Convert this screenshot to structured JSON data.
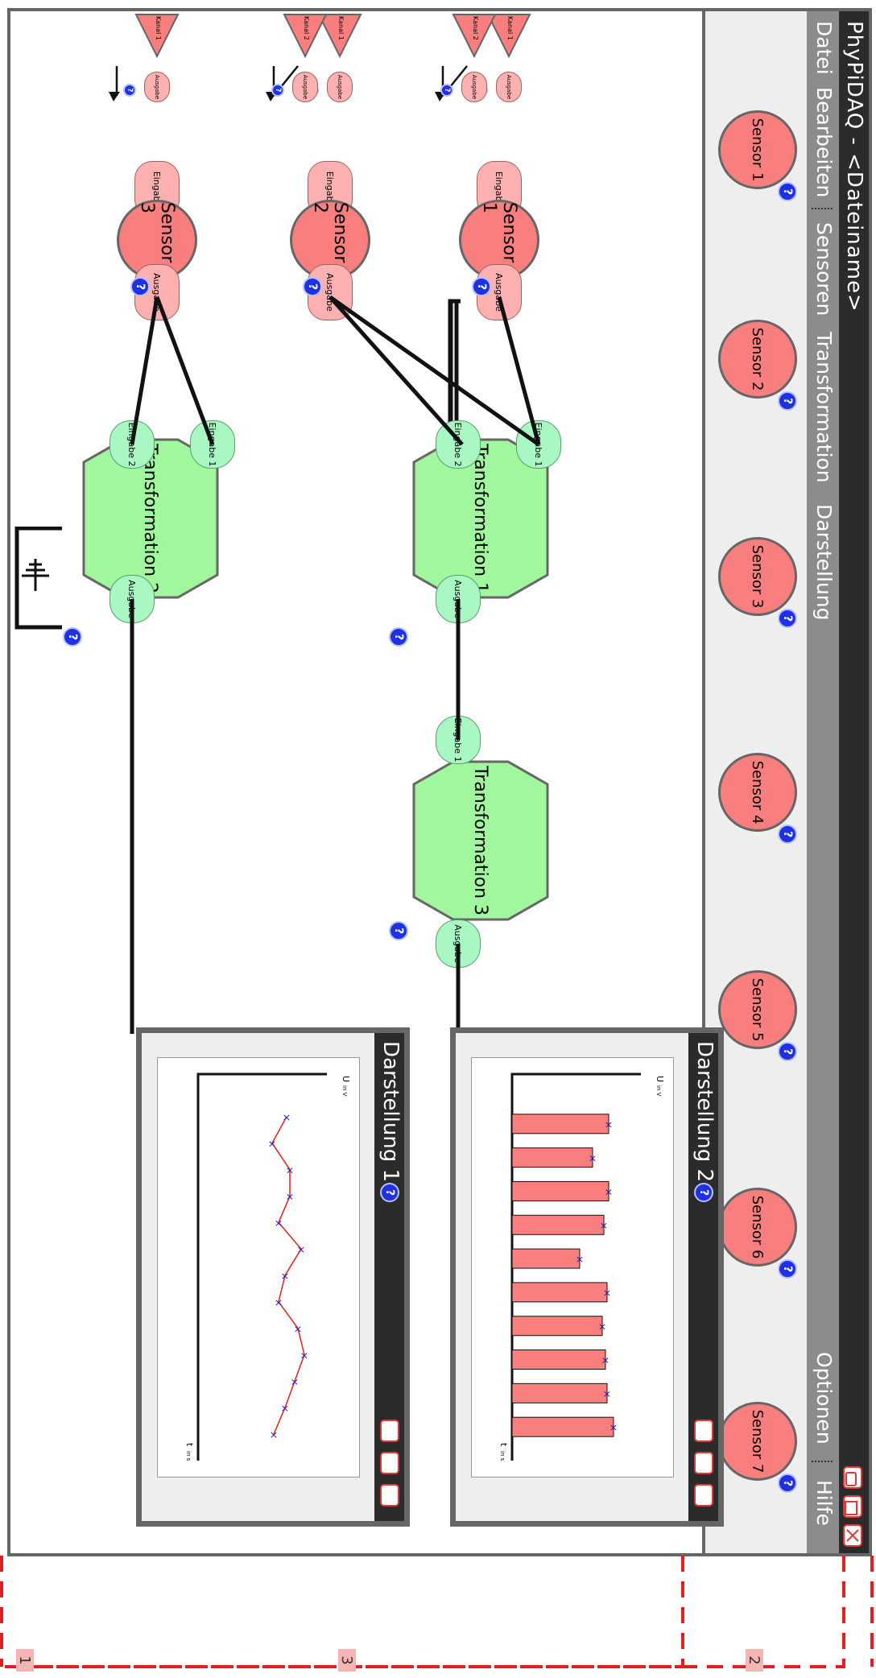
{
  "window": {
    "title": "PhyPiDAQ - <Dateiname>"
  },
  "menu": {
    "items": [
      "Datei",
      "Bearbeiten",
      "Sensoren",
      "Transformation",
      "Darstellung"
    ],
    "right_items": [
      "Optionen",
      "Hilfe"
    ]
  },
  "toolbar": {
    "sensors": [
      "Sensor 1",
      "Sensor 2",
      "Sensor 3",
      "Sensor 4",
      "Sensor 5",
      "Sensor 6",
      "Sensor 7"
    ]
  },
  "help_label": "?",
  "nodes": {
    "sensor1": {
      "label": "Sensor 1",
      "input": "Eingabe",
      "output": "Ausgabe",
      "channels": [
        "Kanal 1",
        "Kanal 2"
      ],
      "channel_port": "Ausgabe"
    },
    "sensor2": {
      "label": "Sensor 2",
      "input": "Eingabe",
      "output": "Ausgabe",
      "channels": [
        "Kanal 1",
        "Kanal 2"
      ],
      "channel_port": "Ausgabe"
    },
    "sensor3": {
      "label": "Sensor 3",
      "input": "Eingabe",
      "output": "Ausgabe",
      "channels": [
        "Kanal 1"
      ],
      "channel_port": "Ausgabe"
    },
    "trans1": {
      "label": "Transformation 1",
      "inputs": [
        "Eingabe 1",
        "Eingabe 2"
      ],
      "output": "Ausgabe"
    },
    "trans2": {
      "label": "Transformation 2",
      "inputs": [
        "Eingabe 1",
        "Eingabe 2"
      ],
      "output": "Ausgabe"
    },
    "trans3": {
      "label": "Transformation 3",
      "inputs": [
        "Eingabe 1"
      ],
      "output": "Ausgabe"
    }
  },
  "displays": {
    "d1": {
      "title": "Darstellung 1",
      "ylabel": "U",
      "yunit": "in V",
      "xlabel": "t",
      "xunit": "in s"
    },
    "d2": {
      "title": "Darstellung 2",
      "ylabel": "U",
      "yunit": "in V",
      "xlabel": "t",
      "xunit": "in s"
    }
  },
  "annotations": [
    "1",
    "2",
    "3"
  ],
  "colors": {
    "sensor": "#f97f7f",
    "sensor_port": "#ffb1b1",
    "transform": "#a0f79d",
    "transform_port": "#a9f7c3",
    "help": "#1f31e4",
    "line_plot": "#e02020",
    "bar": "#f97f7f",
    "marker": "#2020c0"
  },
  "chart_data": [
    {
      "type": "line",
      "title": "Darstellung 1",
      "ylabel": "U in V",
      "xlabel": "t in s",
      "values": [
        0.55,
        0.46,
        0.57,
        0.57,
        0.5,
        0.64,
        0.54,
        0.5,
        0.62,
        0.66,
        0.6,
        0.54,
        0.47
      ]
    },
    {
      "type": "bar",
      "title": "Darstellung 2",
      "ylabel": "U in V",
      "xlabel": "t in s",
      "values": [
        0.6,
        0.5,
        0.6,
        0.57,
        0.42,
        0.59,
        0.56,
        0.58,
        0.59,
        0.63
      ]
    }
  ]
}
